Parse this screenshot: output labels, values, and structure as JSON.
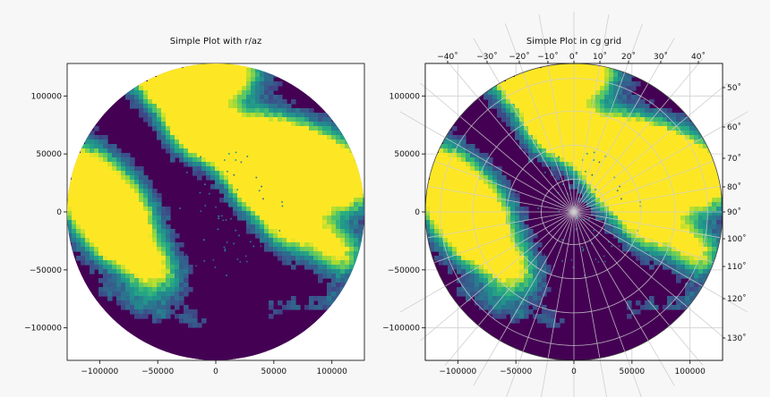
{
  "chart_data": [
    {
      "type": "heatmap",
      "title": "Simple Plot with r/az",
      "xlabel": "",
      "ylabel": "",
      "xlim": [
        -128000,
        128000
      ],
      "ylim": [
        -128000,
        128000
      ],
      "x_ticks": [
        -100000,
        -50000,
        0,
        50000,
        100000
      ],
      "y_ticks": [
        100000,
        50000,
        0,
        -50000,
        -100000
      ],
      "x_tick_labels": [
        "−100000",
        "−50000",
        "0",
        "50000",
        "100000"
      ],
      "y_tick_labels": [
        "100000",
        "50000",
        "0",
        "−50000",
        "−100000"
      ],
      "grid": false,
      "colormap": "viridis",
      "radar_range": 128000
    },
    {
      "type": "heatmap",
      "title": "Simple Plot in cg grid",
      "xlabel": "",
      "ylabel": "",
      "xlim": [
        -128000,
        128000
      ],
      "ylim": [
        -128000,
        128000
      ],
      "x_ticks": [
        -100000,
        -50000,
        0,
        50000,
        100000
      ],
      "y_ticks": [
        100000,
        50000,
        0,
        -50000,
        -100000
      ],
      "x_tick_labels": [
        "−100000",
        "−50000",
        "0",
        "50000",
        "100000"
      ],
      "y_tick_labels": [
        "100000",
        "50000",
        "0",
        "−50000",
        "−100000"
      ],
      "grid": true,
      "colormap": "viridis",
      "radar_range": 128000,
      "top_ticks": [
        "−40˚",
        "−30˚",
        "−20˚",
        "−10˚",
        "0˚",
        "10˚",
        "20˚",
        "30˚",
        "40˚"
      ],
      "right_ticks": [
        "50˚",
        "60˚",
        "70˚",
        "80˚",
        "90˚",
        "100˚",
        "110˚",
        "120˚",
        "130˚"
      ]
    }
  ],
  "colors": {
    "viridis_low": "#440154",
    "viridis_mid": "#21918c",
    "viridis_high": "#fde725",
    "axes_bg": "#ffffff",
    "grid": "#cfcfcf"
  }
}
